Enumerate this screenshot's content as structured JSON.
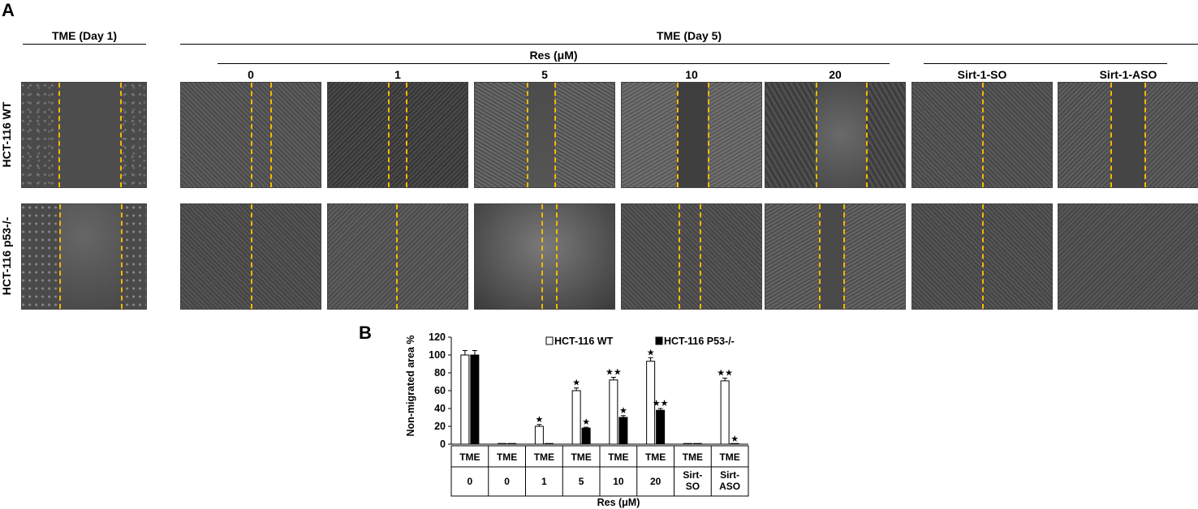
{
  "panel_a": {
    "letter": "A",
    "header_day1": "TME (Day 1)",
    "header_day5": "TME (Day 5)",
    "header_res": "Res (μM)",
    "columns": [
      "0",
      "1",
      "5",
      "10",
      "20",
      "Sirt-1-SO",
      "Sirt-1-ASO"
    ],
    "rows": [
      "HCT-116  WT",
      "HCT-116  p53-/-"
    ],
    "scratch_line_color": "#f5b800"
  },
  "panel_b": {
    "letter": "B",
    "row1_labels": [
      "TME",
      "TME",
      "TME",
      "TME",
      "TME",
      "TME",
      "TME",
      "TME"
    ],
    "row2_labels": [
      "0",
      "0",
      "1",
      "5",
      "10",
      "20",
      "Sirt-\nSO",
      "Sirt-\nASO"
    ]
  },
  "chart_data": {
    "type": "bar",
    "xlabel": "Res (μM)",
    "ylabel": "Non-migrated area %",
    "ylim": [
      0,
      120
    ],
    "yticks": [
      0,
      20,
      40,
      60,
      80,
      100,
      120
    ],
    "categories": [
      "TME 0",
      "TME 0",
      "TME 1",
      "TME 5",
      "TME 10",
      "TME 20",
      "TME Sirt-SO",
      "TME Sirt-ASO"
    ],
    "legend_position": "top-right",
    "grid": false,
    "series": [
      {
        "name": "HCT-116 WT",
        "color": "#ffffff",
        "values": [
          100,
          0,
          20,
          60,
          72,
          93,
          0,
          71
        ],
        "errors": [
          5,
          0,
          2,
          3,
          3,
          4,
          0,
          3
        ],
        "sig": [
          "",
          "",
          "★",
          "★",
          "★★",
          "★",
          "",
          "★★"
        ]
      },
      {
        "name": "HCT-116 P53-/-",
        "color": "#000000",
        "values": [
          100,
          0,
          0,
          18,
          30,
          38,
          0,
          0
        ],
        "errors": [
          5,
          0,
          0,
          1,
          2,
          2,
          0,
          0
        ],
        "sig": [
          "",
          "",
          "",
          "★",
          "★",
          "★★",
          "",
          "★"
        ]
      }
    ]
  }
}
